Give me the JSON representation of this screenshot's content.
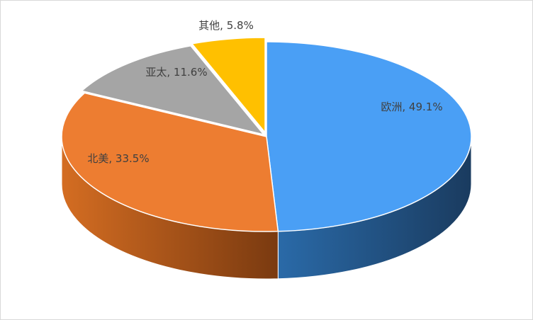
{
  "chart_data": {
    "type": "pie",
    "title": "",
    "three_d": true,
    "slices": [
      {
        "label": "欧洲",
        "value": 49.1,
        "text": "欧洲, 49.1%",
        "color": "#4a9ff5",
        "side_color": "#1f4f7a"
      },
      {
        "label": "北美",
        "value": 33.5,
        "text": "北美, 33.5%",
        "color": "#ed7d31",
        "side_color": "#9c4c16"
      },
      {
        "label": "亚太",
        "value": 11.6,
        "text": "亚太, 11.6%",
        "color": "#a5a5a5",
        "side_color": "#6e6e6e"
      },
      {
        "label": "其他",
        "value": 5.8,
        "text": "其他, 5.8%",
        "color": "#ffc000",
        "side_color": "#b88a00"
      }
    ],
    "legend": "none",
    "data_labels": "category, percent"
  }
}
